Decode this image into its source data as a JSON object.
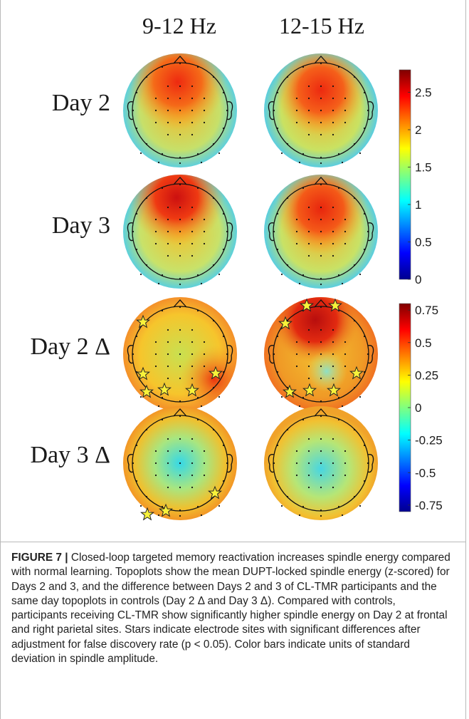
{
  "columns": [
    "9-12 Hz",
    "12-15 Hz"
  ],
  "rows": [
    "Day 2",
    "Day 3",
    "Day 2 Δ",
    "Day 3 Δ"
  ],
  "colorbar_top": {
    "ticks": [
      "2.5",
      "2",
      "1.5",
      "1",
      "0.5",
      "0"
    ],
    "min": 0,
    "max": 2.8
  },
  "colorbar_bottom": {
    "ticks": [
      "0.75",
      "0.5",
      "0.25",
      "0",
      "-0.25",
      "-0.5",
      "-0.75"
    ],
    "min": -0.8,
    "max": 0.8
  },
  "stars": {
    "day2_delta_9_12": 6,
    "day2_delta_12_15": 7,
    "day3_delta_9_12": 3,
    "day3_delta_12_15": 0
  },
  "caption": {
    "label": "FIGURE 7 |",
    "text": "Closed-loop targeted memory reactivation increases spindle energy compared with normal learning. Topoplots show the mean DUPT-locked spindle energy (z-scored) for Days 2 and 3, and the difference between Days 2 and 3 of CL-TMR participants and the same day topoplots in controls (Day 2 Δ and Day 3 Δ). Compared with controls, participants receiving CL-TMR show significantly higher spindle energy on Day 2 at frontal and right parietal sites. Stars indicate electrode sites with significant differences after adjustment for false discovery rate (p < 0.05). Color bars indicate units of standard deviation in spindle amplitude."
  }
}
